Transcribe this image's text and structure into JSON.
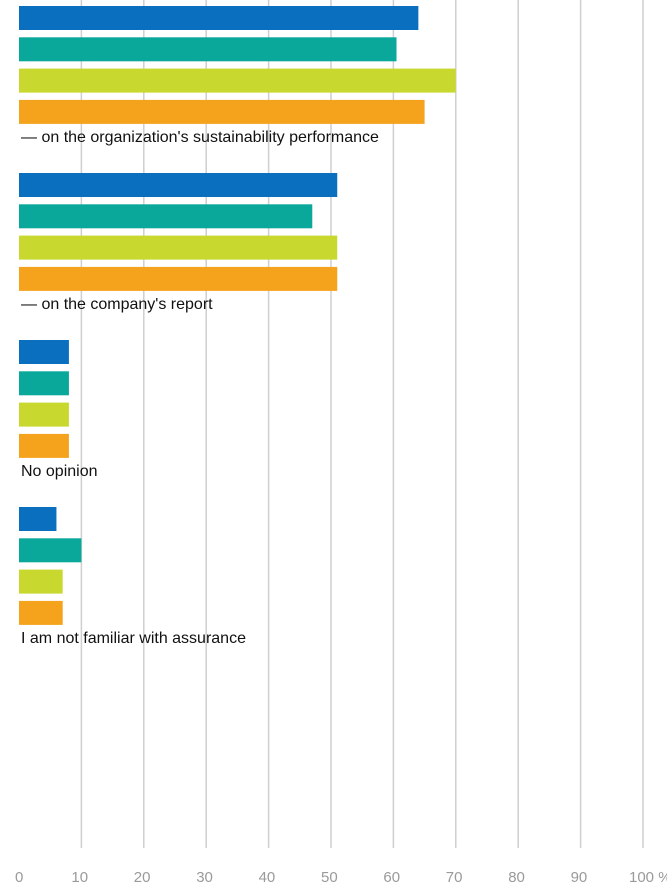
{
  "chart_data": {
    "type": "bar",
    "orientation": "horizontal",
    "categories": [
      "— on the organization's sustainability performance",
      "— on the company's report",
      "No opinion",
      "I am not familiar with assurance"
    ],
    "series": [
      {
        "color": "#0a6fbf",
        "values": [
          64,
          51,
          8,
          6
        ]
      },
      {
        "color": "#0aa89a",
        "values": [
          60.5,
          47,
          8,
          10
        ]
      },
      {
        "color": "#c8d82e",
        "values": [
          70,
          51,
          8,
          7
        ]
      },
      {
        "color": "#f5a31c",
        "values": [
          65,
          51,
          8,
          7
        ]
      }
    ],
    "xlim": [
      0,
      100
    ],
    "x_ticks": [
      "0",
      "10",
      "20",
      "30",
      "40",
      "50",
      "60",
      "70",
      "80",
      "90",
      "100 %"
    ],
    "grid": "vertical",
    "gridline_color": "#cfcfcf"
  }
}
